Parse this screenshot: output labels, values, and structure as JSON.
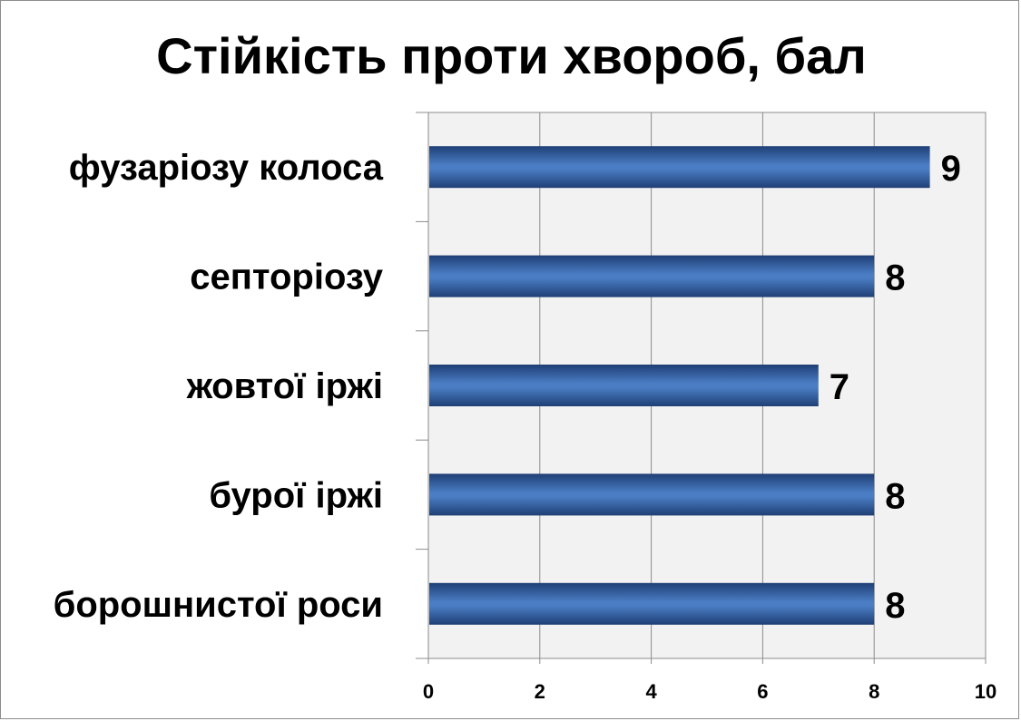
{
  "chart_data": {
    "type": "bar",
    "orientation": "horizontal",
    "title": "Стійкість проти хвороб, бал",
    "categories": [
      "фузаріозу колоса",
      "септоріозу",
      "жовтої іржі",
      "бурої іржі",
      "борошнистої роси"
    ],
    "values": [
      9,
      8,
      7,
      8,
      8
    ],
    "xlim": [
      0,
      10
    ],
    "xticks": [
      "0",
      "2",
      "4",
      "6",
      "8",
      "10"
    ],
    "grid": true,
    "legend": "none",
    "bar_color": "#4a7dc4",
    "bar_color_dark": "#1f3f75",
    "plot_background": "#f2f2f2"
  }
}
